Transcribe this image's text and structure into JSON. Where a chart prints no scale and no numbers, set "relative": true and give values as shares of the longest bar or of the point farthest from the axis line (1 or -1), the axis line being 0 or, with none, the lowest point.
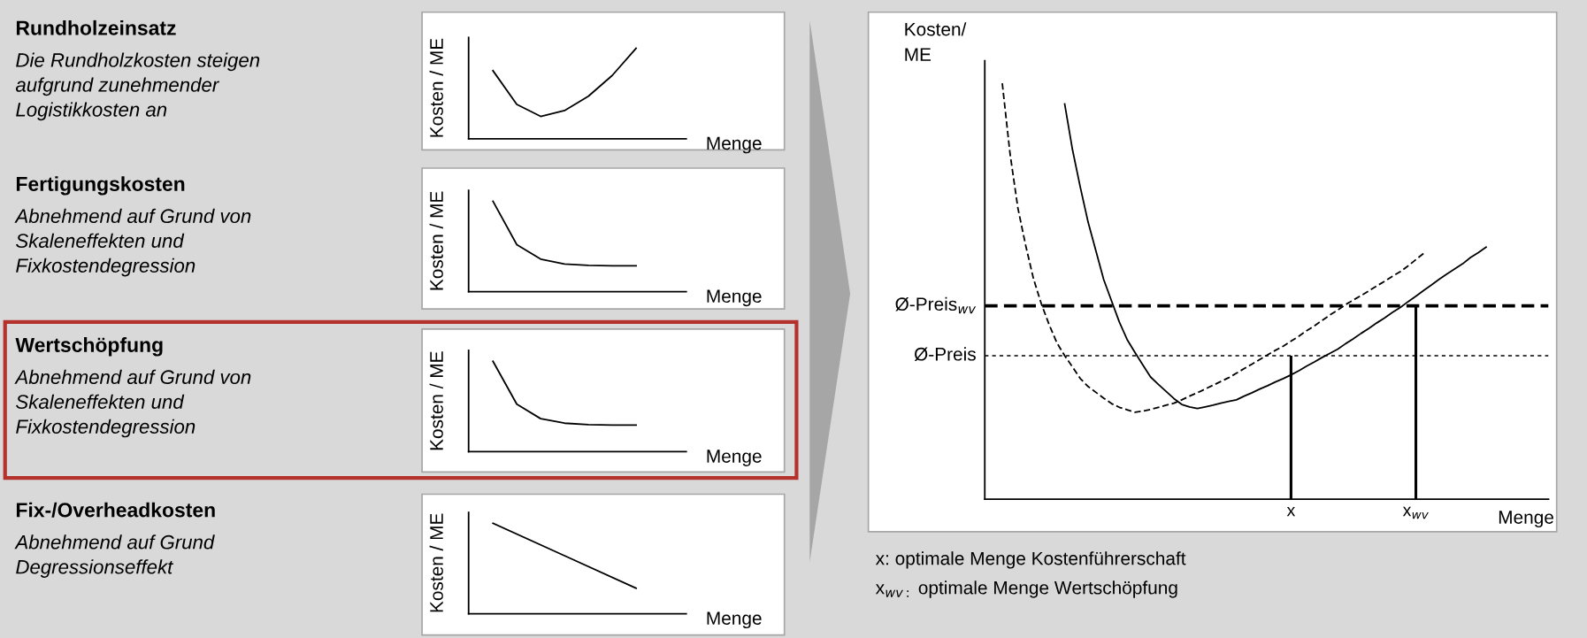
{
  "chart_data": [
    {
      "type": "other",
      "title": "Rundholzeinsatz",
      "subtitle": "Die Rundholzkosten steigen\naufgrund zunehmender\nLogistikkosten an"
    },
    {
      "type": "line",
      "relative": true,
      "xlabel": "Menge",
      "ylabel": "Kosten / ME",
      "tick_labels": false,
      "categories": [
        null,
        null,
        null,
        null,
        null,
        null,
        null
      ],
      "series": [
        {
          "color": "#000000",
          "values": [
            0.753,
            0.38,
            0.247,
            0.312,
            0.47,
            0.7,
            1.0
          ]
        }
      ]
    },
    {
      "type": "other",
      "title": "Fertigungskosten",
      "subtitle": "Abnehmend auf Grund von\nSkaleneffekten und\nFixkostendegression"
    },
    {
      "type": "line",
      "relative": true,
      "xlabel": "Menge",
      "ylabel": "Kosten / ME",
      "tick_labels": false,
      "categories": [
        null,
        null,
        null,
        null,
        null,
        null,
        null
      ],
      "series": [
        {
          "color": "#000000",
          "values": [
            1.0,
            0.52,
            0.36,
            0.305,
            0.29,
            0.286,
            0.286
          ]
        }
      ]
    },
    {
      "type": "other",
      "title": "Wertschöpfung",
      "subtitle": "Abnehmend auf Grund von\nSkaleneffekten und\nFixkostendegression"
    },
    {
      "type": "line",
      "relative": true,
      "xlabel": "Menge",
      "ylabel": "Kosten / ME",
      "tick_labels": false,
      "categories": [
        null,
        null,
        null,
        null,
        null,
        null,
        null
      ],
      "series": [
        {
          "color": "#000000",
          "values": [
            1.0,
            0.525,
            0.365,
            0.315,
            0.298,
            0.295,
            0.295
          ]
        }
      ]
    },
    {
      "type": "other",
      "title": "Fix-/Overheadkosten",
      "subtitle": "Abnehmend auf Grund\nDegressionseffekt"
    },
    {
      "type": "line",
      "relative": true,
      "xlabel": "Menge",
      "ylabel": "Kosten / ME",
      "tick_labels": false,
      "categories": [
        null,
        null,
        null
      ],
      "series": [
        {
          "color": "#000000",
          "values": [
            1.0,
            0.641,
            0.282
          ]
        }
      ]
    },
    {
      "type": "line",
      "relative": true,
      "xlabel": "Menge",
      "ylabel": "Kosten/\nME",
      "tick_labels": "x",
      "categories": [
        null,
        null,
        null,
        null,
        null,
        null,
        null,
        null,
        null,
        null,
        null,
        null,
        null,
        null,
        null,
        null,
        null,
        null,
        null,
        null,
        null,
        null,
        null,
        null,
        null,
        null,
        null,
        null,
        null,
        null,
        null,
        null,
        null,
        null,
        null,
        null,
        null,
        "x",
        null,
        null,
        null,
        null,
        null,
        null,
        null,
        null,
        null,
        null,
        null,
        null,
        null,
        null,
        null,
        "x$_{wv}$",
        null,
        null,
        null,
        null,
        null,
        null,
        null,
        null,
        null,
        null,
        null,
        null,
        null,
        null,
        null,
        null,
        null
      ],
      "series": [
        {
          "color": "#000000",
          "line_style": "solid",
          "values": [
            null,
            null,
            null,
            null,
            null,
            null,
            null,
            null,
            0.95,
            0.84,
            0.75,
            0.666,
            0.597,
            0.528,
            0.477,
            0.426,
            0.384,
            0.353,
            0.323,
            0.294,
            0.276,
            0.259,
            0.242,
            0.228,
            0.222,
            0.218,
            0.222,
            0.226,
            0.231,
            0.235,
            0.239,
            0.248,
            0.256,
            0.265,
            0.273,
            0.282,
            0.29,
            0.299,
            0.309,
            0.32,
            0.33,
            0.341,
            0.351,
            0.361,
            0.374,
            0.386,
            0.399,
            0.411,
            0.424,
            0.436,
            0.449,
            0.461,
            0.475,
            0.488,
            0.502,
            0.515,
            0.529,
            0.542,
            0.554,
            0.566,
            0.581,
            0.593,
            0.606,
            null,
            null,
            null,
            null,
            null,
            null,
            null,
            null
          ]
        },
        {
          "color": "#000000",
          "line_style": "dashed",
          "values": [
            1.0,
            0.83,
            0.7,
            0.61,
            0.53,
            0.47,
            0.42,
            0.376,
            0.345,
            0.318,
            0.29,
            0.271,
            0.257,
            0.243,
            0.23,
            0.221,
            0.215,
            0.209,
            0.212,
            0.216,
            0.221,
            0.226,
            0.231,
            0.239,
            0.248,
            0.256,
            0.265,
            0.274,
            0.283,
            0.292,
            0.303,
            0.314,
            0.325,
            0.336,
            0.347,
            0.358,
            0.368,
            0.38,
            0.392,
            0.405,
            0.417,
            0.43,
            0.443,
            0.455,
            0.468,
            0.479,
            0.49,
            0.501,
            0.513,
            0.524,
            0.536,
            0.547,
            0.561,
            0.576,
            0.591,
            null,
            null,
            null,
            null,
            null,
            null,
            null,
            null,
            null,
            null,
            null,
            null,
            null,
            null,
            null,
            null
          ]
        },
        {
          "type": "bar",
          "color": "#000000",
          "values": [
            null,
            null,
            null,
            null,
            null,
            null,
            null,
            null,
            null,
            null,
            null,
            null,
            null,
            null,
            null,
            null,
            null,
            null,
            null,
            null,
            null,
            null,
            null,
            null,
            null,
            null,
            null,
            null,
            null,
            null,
            null,
            null,
            null,
            null,
            null,
            null,
            null,
            0.345,
            null,
            null,
            null,
            null,
            null,
            null,
            null,
            null,
            null,
            null,
            null,
            null,
            null,
            null,
            null,
            0.465,
            null,
            null,
            null,
            null,
            null,
            null,
            null,
            null,
            null,
            null,
            null,
            null,
            null,
            null,
            null,
            null,
            null
          ]
        }
      ],
      "ref_lines": [
        {
          "axis": "y",
          "value": 0.465,
          "label": "Ø-Preis$_{wv}$",
          "color": "#000000",
          "line_style": "dashed"
        },
        {
          "axis": "y",
          "value": 0.345,
          "label": "Ø-Preis",
          "color": "#000000",
          "line_style": "dashed"
        }
      ],
      "annotations": [
        "x: optimale Menge Kostenführerschaft",
        "x$_{wv:}$ optimale Menge Wertschöpfung"
      ]
    }
  ]
}
